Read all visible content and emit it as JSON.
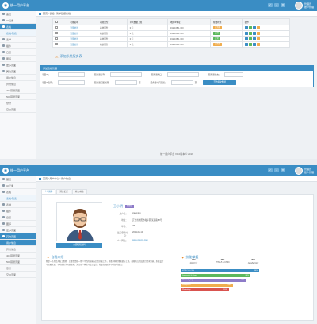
{
  "app": {
    "title": "统一用户平台",
    "user_name": "管理员",
    "user_role": "账户管理"
  },
  "colors": {
    "brand": "#3a8dc4",
    "orange": "#f0ad4e",
    "green": "#5cb85c"
  },
  "sidebar": [
    {
      "label": "首页",
      "icon": "home-icon"
    },
    {
      "label": "UI元素",
      "icon": "desktop-icon"
    },
    {
      "label": "表格",
      "icon": "table-icon"
    },
    {
      "label": "表格/列表",
      "sub": true
    },
    {
      "label": "表单",
      "icon": "edit-icon"
    },
    {
      "label": "插件",
      "icon": "plugin-icon"
    },
    {
      "label": "日历",
      "icon": "calendar-icon"
    },
    {
      "label": "图库",
      "icon": "picture-icon"
    },
    {
      "label": "更多页面",
      "icon": "tag-icon"
    },
    {
      "label": "其他页面",
      "icon": "file-icon"
    },
    {
      "label": "用户信息",
      "sub2": true
    },
    {
      "label": "异常信息",
      "sub2": true
    },
    {
      "label": "404错误页面",
      "sub2": true
    },
    {
      "label": "500错误页面",
      "sub2": true
    },
    {
      "label": "登录",
      "sub2": true
    },
    {
      "label": "空白页面",
      "sub2": true
    }
  ],
  "screen1": {
    "crumbs": "首页 / 表格 / 简单数据表格",
    "table": {
      "headers": [
        "",
        "功能说明",
        "功能类型",
        "公共数据上限",
        "地理IP地址",
        "在线状态",
        "操作"
      ],
      "rows": [
        {
          "name": "流量统计",
          "type": "系统服务",
          "limit": "0 元",
          "ip": "192.168.1.100",
          "status": "已到期",
          "status_color": "orange"
        },
        {
          "name": "流量统计",
          "type": "系统服务",
          "limit": "0 元",
          "ip": "192.168.1.100",
          "status": "正常",
          "status_color": "green"
        },
        {
          "name": "流量统计",
          "type": "系统服务",
          "limit": "0 元",
          "ip": "192.168.1.100",
          "status": "正常",
          "status_color": "green"
        },
        {
          "name": "流量统计",
          "type": "系统服务",
          "limit": "0 元",
          "ip": "192.168.1.100",
          "status": "已到期",
          "status_color": "orange"
        }
      ]
    },
    "section_title": "添加系统服务表",
    "form": {
      "head": "添加表格管理",
      "row1": [
        "项目ID：",
        "服务器名称：",
        "服务器端口：",
        "服务器状态："
      ],
      "row2": [
        "项目IP名称：",
        "服务器配置到期：",
        "至",
        "服务器时间范围：",
        "至"
      ],
      "button": "开始提交数据"
    },
    "footer": "统一用户平台 V1.0版本 © 2019"
  },
  "screen2": {
    "crumbs": "首页 / 用户中心 / 用户信息",
    "tabs": [
      "个人资料",
      "消息记录",
      "好友/关注"
    ],
    "profile": {
      "name": "王小明",
      "tag": "管理员",
      "fields": [
        [
          "用户名：",
          "xiaoming"
        ],
        [
          "地址：",
          "辽宁省沈阳市和平区 某某路88号"
        ],
        [
          "年龄：",
          "28"
        ],
        [
          "最后登录时间：",
          "2019-05-10"
        ],
        [
          "个人网站：",
          "www.xxxxxx.com"
        ]
      ],
      "edit_button": "立即编辑资料"
    },
    "about_title": "自我介绍",
    "about": "我是一名平台开发工程师，主要负责统一用户平台的前端与后台开发工作，熟悉多种常用框架与工具，能够独立完成项目需求分析、系统设计与功能实现。平时喜欢学习新技术，关注用户体验与交互设计，希望在团队中不断提升自己。",
    "skills_title": "技能掌握",
    "pies": [
      {
        "pct": "45%",
        "label": "前端设计"
      },
      {
        "pct": "30%",
        "label": "HTML5 & CSS3"
      },
      {
        "pct": "25%",
        "label": "JavaScript库"
      }
    ],
    "bars": [
      {
        "label": "HTML 5 & CSS",
        "pct": "90%",
        "value": 90,
        "color": "#3a8dc4"
      },
      {
        "label": "Javascript & jQuery",
        "pct": "80%",
        "value": 80,
        "color": "#5cb85c"
      },
      {
        "label": "PHP & MySQL",
        "pct": "75%",
        "value": 75,
        "color": "#8d7bc8"
      },
      {
        "label": "Wordpress",
        "pct": "60%",
        "value": 60,
        "color": "#f0ad4e"
      },
      {
        "label": "Photoshop",
        "pct": "55%",
        "value": 55,
        "color": "#d9534f"
      }
    ]
  }
}
